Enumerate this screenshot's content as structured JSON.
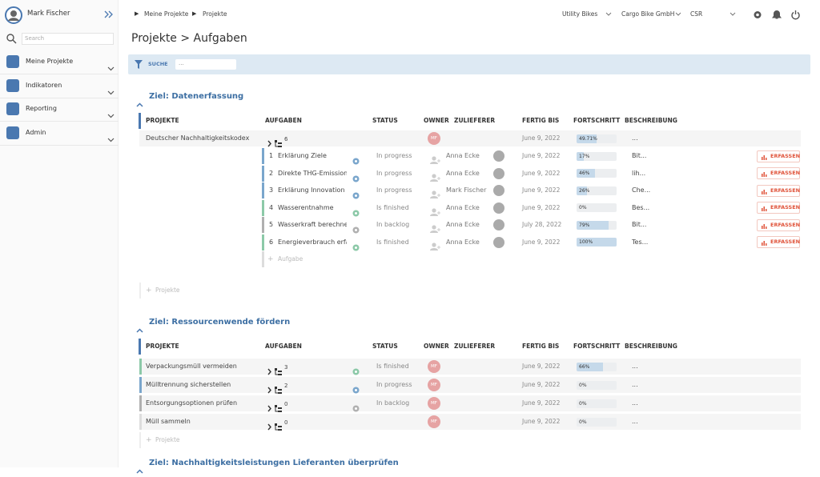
{
  "sidebar": {
    "user": "Mark Fischer",
    "search": "Search",
    "menu": [
      "Meine Projekte",
      "Indikatoren",
      "Reporting",
      "Admin"
    ]
  },
  "breadcrumb": [
    "Meine Projekte",
    "Projekte"
  ],
  "topbar": {
    "selects": [
      "Utility Bikes",
      "Cargo Bike GmbH",
      "CSR"
    ]
  },
  "page_title": "Projekte > Aufgaben",
  "filter": {
    "label": "SUCHE",
    "placeholder": "..."
  },
  "groups": [
    {
      "title": "Ziel: Datenerfassung",
      "columns": [
        "PROJEKTE",
        "AUFGABEN",
        "STATUS",
        "OWNER",
        "ZULIEFERER",
        "FERTIG BIS",
        "FORTSCHRITT",
        "BESCHREIBUNG"
      ],
      "projects": [
        {
          "name": "Deutscher Nachhaltigkeitskodex",
          "task_count": "6",
          "owner": "MF",
          "date": "June 9, 2022",
          "progress": {
            "value": 49.71,
            "label": "49.71%"
          },
          "description": "...",
          "tasks": [
            {
              "number": "1",
              "name": "Erklärung Ziele",
              "status": "In progress",
              "status_color": "#7aa6cc",
              "supplier": "Anna Ecke",
              "date": "June 9, 2022",
              "progress": {
                "value": 17,
                "label": "17%"
              },
              "description": "Bit...",
              "action": "ERFASSEN"
            },
            {
              "number": "2",
              "name": "Direkte THG-Emissionen",
              "status": "In progress",
              "status_color": "#7aa6cc",
              "supplier": "Anna Ecke",
              "date": "June 9, 2022",
              "progress": {
                "value": 46,
                "label": "46%"
              },
              "description": "lih...",
              "action": "ERFASSEN"
            },
            {
              "number": "3",
              "name": "Erklärung Innovation",
              "status": "In progress",
              "status_color": "#7aa6cc",
              "supplier": "Mark Fischer",
              "date": "June 9, 2022",
              "progress": {
                "value": 26,
                "label": "26%"
              },
              "description": "Che...",
              "action": "ERFASSEN"
            },
            {
              "number": "4",
              "name": "Wasserentnahme",
              "status": "Is finished",
              "status_color": "#8cc9a8",
              "supplier": "Anna Ecke",
              "date": "June 9, 2022",
              "progress": {
                "value": 0,
                "label": "0%"
              },
              "description": "Bes...",
              "action": "ERFASSEN"
            },
            {
              "number": "5",
              "name": "Wasserkraft berechnen",
              "status": "In backlog",
              "status_color": "#b0b0b0",
              "supplier": "Anna Ecke",
              "date": "July 28, 2022",
              "progress": {
                "value": 79,
                "label": "79%"
              },
              "description": "Bit...",
              "action": "ERFASSEN"
            },
            {
              "number": "6",
              "name": "Energieverbrauch erfassen",
              "status": "Is finished",
              "status_color": "#8cc9a8",
              "supplier": "Anna Ecke",
              "date": "June 9, 2022",
              "progress": {
                "value": 100,
                "label": "100%"
              },
              "description": "Tes...",
              "action": "ERFASSEN"
            }
          ],
          "add_task": "Aufgabe"
        }
      ],
      "add_project": "Projekte"
    },
    {
      "title": "Ziel: Ressourcenwende fördern",
      "columns": [
        "PROJEKTE",
        "AUFGABEN",
        "STATUS",
        "OWNER",
        "ZULIEFERER",
        "FERTIG BIS",
        "FORTSCHRITT",
        "BESCHREIBUNG"
      ],
      "projects": [
        {
          "name": "Verpackungsmüll vermeiden",
          "task_count": "3",
          "status": "Is finished",
          "status_color": "#8cc9a8",
          "owner": "MF",
          "date": "June 9, 2022",
          "progress": {
            "value": 66,
            "label": "66%"
          },
          "description": "..."
        },
        {
          "name": "Mülltrennung sicherstellen",
          "task_count": "2",
          "status": "In progress",
          "status_color": "#7aa6cc",
          "owner": "MF",
          "date": "June 9, 2022",
          "progress": {
            "value": 0,
            "label": "0%"
          },
          "description": "..."
        },
        {
          "name": "Entsorgungsoptionen prüfen",
          "task_count": "0",
          "status": "In backlog",
          "status_color": "#b0b0b0",
          "owner": "MF",
          "date": "June 9, 2022",
          "progress": {
            "value": 0,
            "label": "0%"
          },
          "description": "..."
        },
        {
          "name": "Müll sammeln",
          "task_count": "0",
          "owner": "MF",
          "date": "June 9, 2022",
          "progress": {
            "value": 0,
            "label": "0%"
          },
          "description": "..."
        }
      ],
      "add_project": "Projekte"
    },
    {
      "title": "Ziel: Nachhaltigkeitsleistungen Lieferanten überprüfen"
    }
  ]
}
